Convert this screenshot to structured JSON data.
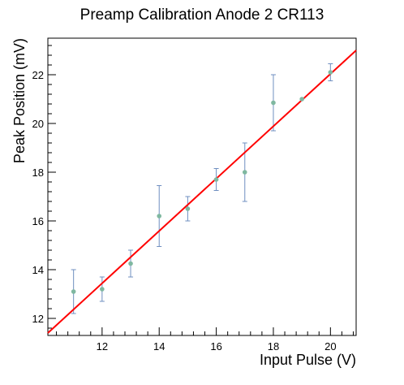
{
  "chart_data": {
    "type": "scatter",
    "title": "Preamp Calibration Anode 2 CR113",
    "xlabel": "Input Pulse (V)",
    "ylabel": "Peak Position (mV)",
    "xlim": [
      10.1,
      20.9
    ],
    "ylim": [
      11.3,
      23.5
    ],
    "x_ticks": [
      12,
      14,
      16,
      18,
      20
    ],
    "y_ticks": [
      12,
      14,
      16,
      18,
      20,
      22
    ],
    "grid": false,
    "legend": "none",
    "series": [
      {
        "marker_color": "#7fb8a0",
        "errorbar_color": "#6f8fc0",
        "points": [
          {
            "x": 11,
            "y": 13.1,
            "yerr": 0.9
          },
          {
            "x": 12,
            "y": 13.2,
            "yerr": 0.5
          },
          {
            "x": 13,
            "y": 14.25,
            "yerr": 0.55
          },
          {
            "x": 14,
            "y": 16.2,
            "yerr": 1.25
          },
          {
            "x": 15,
            "y": 16.5,
            "yerr": 0.5
          },
          {
            "x": 16,
            "y": 17.7,
            "yerr": 0.45
          },
          {
            "x": 17,
            "y": 18.0,
            "yerr": 1.2
          },
          {
            "x": 18,
            "y": 20.85,
            "yerr": 1.15
          },
          {
            "x": 19,
            "y": 21.0,
            "yerr": 0.0
          },
          {
            "x": 20,
            "y": 22.1,
            "yerr": 0.35
          }
        ]
      }
    ],
    "fit_line": {
      "color": "#ff0000",
      "x": [
        10.1,
        20.9
      ],
      "y": [
        11.4,
        23.0
      ]
    }
  }
}
